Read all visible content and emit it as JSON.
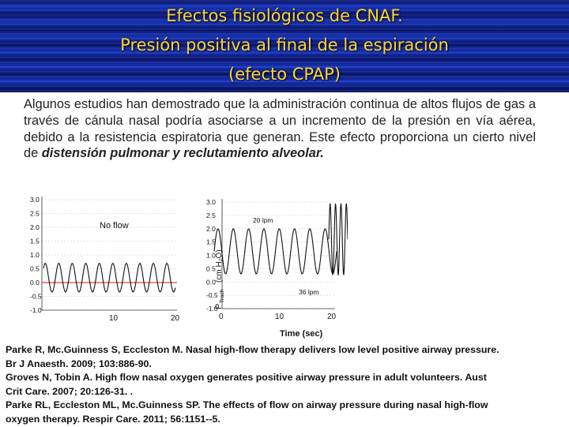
{
  "header": {
    "title_lines": [
      "Efectos fisiológicos de CNAF.",
      "Presión positiva al final de la espiración",
      "(efecto CPAP)"
    ]
  },
  "body": {
    "text_plain": "Algunos estudios han demostrado que la administración continua de altos flujos de gas a través de cánula nasal podría asociarse a un incremento de la presión en vía aérea, debido a la resistencia espiratoria que generan. Este efecto proporciona un cierto nivel de ",
    "text_emphasis": "distensión pulmonar y reclutamiento alveolar."
  },
  "figure": {
    "panels": [
      {
        "label": "No flow",
        "yticks": [
          "3.0",
          "2.5",
          "2.0",
          "1.5",
          "1.0",
          "0.5",
          "0.0",
          "-0.5",
          "-1.0"
        ],
        "xticks": [
          "10",
          "20"
        ]
      },
      {
        "label": "20 lpm",
        "yticks": [
          "3.0",
          "2.5",
          "2.0",
          "1.5",
          "1.0",
          "0.5",
          "0.0",
          "-0.5",
          "-1.0"
        ],
        "xticks": [
          "0",
          "10",
          "20"
        ]
      },
      {
        "label": "36 lpm",
        "yticks": [
          "3.0",
          "2.5",
          "2.0",
          "1.5",
          "1.0",
          "0.5",
          "0.0",
          "-0.5",
          "-1.0"
        ],
        "xticks": [
          "0",
          "10",
          "20"
        ]
      }
    ],
    "ylabel_main": "P",
    "ylabel_sub": "Trach",
    "ylabel_units": "(cm H₂O)",
    "xlabel": "Time (sec)",
    "colors": {
      "trace": "#111111",
      "baseline": "#d01010",
      "grid": "#c8c8c8"
    }
  },
  "references": [
    "Parke R, Mc.Guinness S, Eccleston M. Nasal high-flow therapy delivers low level positive airway pressure.",
    "Br J Anaesth. 2009; 103:886-90.",
    "Groves N, Tobin A. High flow nasal oxygen generates positive airway pressure in adult volunteers. Aust",
    "Crit Care. 2007; 20:126-31. .",
    "Parke RL, Eccleston ML, Mc.Guinness SP. The effects of flow on airway pressure during nasal high-flow",
    "oxygen therapy. Respir Care. 2011; 56:1151--5."
  ]
}
